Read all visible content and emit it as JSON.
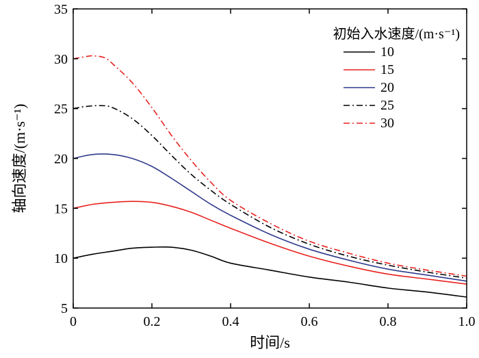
{
  "chart_data": {
    "type": "line",
    "title": "",
    "xlabel": "时间/s",
    "ylabel": "轴向速度/(m·s⁻¹)",
    "xlim": [
      0,
      1.0
    ],
    "ylim": [
      5,
      35
    ],
    "xticks": [
      0,
      0.2,
      0.4,
      0.6,
      0.8,
      1.0
    ],
    "xtick_labels": [
      "0",
      "0.2",
      "0.4",
      "0.6",
      "0.8",
      "1.0"
    ],
    "yticks": [
      5,
      10,
      15,
      20,
      25,
      30,
      35
    ],
    "ytick_labels": [
      "5",
      "10",
      "15",
      "20",
      "25",
      "30",
      "35"
    ],
    "grid": false,
    "legend": {
      "title": "初始入水速度/(m·s⁻¹)",
      "placement": "top-right"
    },
    "series": [
      {
        "name": "10",
        "color": "#000000",
        "dash": "solid",
        "x": [
          0,
          0.05,
          0.1,
          0.15,
          0.2,
          0.25,
          0.3,
          0.35,
          0.4,
          0.5,
          0.6,
          0.7,
          0.8,
          0.9,
          1.0
        ],
        "y": [
          10.0,
          10.4,
          10.7,
          11.0,
          11.1,
          11.1,
          10.8,
          10.2,
          9.5,
          8.8,
          8.1,
          7.6,
          7.0,
          6.6,
          6.1
        ]
      },
      {
        "name": "15",
        "color": "#e8221f",
        "dash": "solid",
        "x": [
          0,
          0.05,
          0.1,
          0.15,
          0.2,
          0.25,
          0.3,
          0.35,
          0.4,
          0.5,
          0.6,
          0.7,
          0.8,
          0.9,
          1.0
        ],
        "y": [
          15.0,
          15.4,
          15.6,
          15.7,
          15.6,
          15.2,
          14.6,
          13.8,
          13.0,
          11.5,
          10.2,
          9.2,
          8.4,
          7.9,
          7.4
        ]
      },
      {
        "name": "20",
        "color": "#2e3a8c",
        "dash": "solid",
        "x": [
          0,
          0.05,
          0.1,
          0.15,
          0.2,
          0.25,
          0.3,
          0.35,
          0.4,
          0.5,
          0.6,
          0.7,
          0.8,
          0.9,
          1.0
        ],
        "y": [
          20.0,
          20.4,
          20.4,
          20.0,
          19.2,
          18.0,
          16.7,
          15.4,
          14.3,
          12.4,
          10.9,
          9.8,
          8.9,
          8.3,
          7.7
        ]
      },
      {
        "name": "25",
        "color": "#000000",
        "dash": "dashdot",
        "x": [
          0,
          0.03,
          0.07,
          0.1,
          0.15,
          0.2,
          0.25,
          0.3,
          0.35,
          0.4,
          0.5,
          0.6,
          0.7,
          0.8,
          0.9,
          1.0
        ],
        "y": [
          25.0,
          25.2,
          25.3,
          25.1,
          24.0,
          22.3,
          20.3,
          18.4,
          16.8,
          15.4,
          13.1,
          11.4,
          10.2,
          9.3,
          8.6,
          8.0
        ]
      },
      {
        "name": "30",
        "color": "#e8221f",
        "dash": "dashdot",
        "x": [
          0,
          0.03,
          0.05,
          0.08,
          0.1,
          0.15,
          0.2,
          0.25,
          0.3,
          0.35,
          0.4,
          0.5,
          0.6,
          0.7,
          0.8,
          0.9,
          1.0
        ],
        "y": [
          30.0,
          30.2,
          30.3,
          30.1,
          29.5,
          27.6,
          25.1,
          22.3,
          19.8,
          17.6,
          15.8,
          13.5,
          11.7,
          10.5,
          9.5,
          8.8,
          8.2
        ]
      }
    ]
  }
}
